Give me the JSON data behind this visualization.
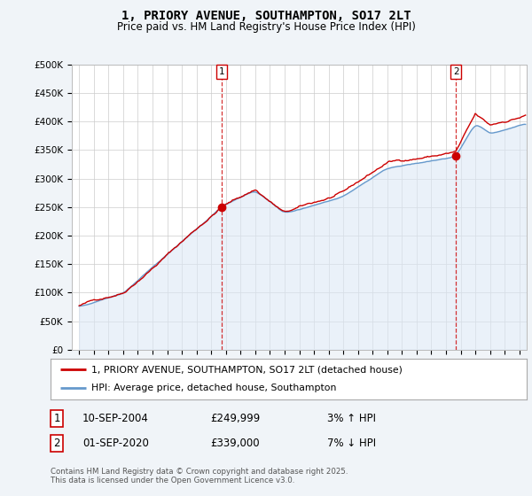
{
  "title": "1, PRIORY AVENUE, SOUTHAMPTON, SO17 2LT",
  "subtitle": "Price paid vs. HM Land Registry's House Price Index (HPI)",
  "ylabel_ticks": [
    "£0",
    "£50K",
    "£100K",
    "£150K",
    "£200K",
    "£250K",
    "£300K",
    "£350K",
    "£400K",
    "£450K",
    "£500K"
  ],
  "ylim": [
    0,
    500000
  ],
  "xlim_start": 1994.5,
  "xlim_end": 2025.5,
  "sale1_date": "10-SEP-2004",
  "sale1_price": "£249,999",
  "sale1_hpi": "3% ↑ HPI",
  "sale1_x": 2004.71,
  "sale2_date": "01-SEP-2020",
  "sale2_price": "£339,000",
  "sale2_hpi": "7% ↓ HPI",
  "sale2_x": 2020.67,
  "line_color_red": "#cc0000",
  "line_color_blue": "#6699cc",
  "fill_color_blue": "#dce8f5",
  "vline_color": "#cc0000",
  "background_color": "#f0f4f8",
  "plot_bg": "#ffffff",
  "legend_label_red": "1, PRIORY AVENUE, SOUTHAMPTON, SO17 2LT (detached house)",
  "legend_label_blue": "HPI: Average price, detached house, Southampton",
  "footer": "Contains HM Land Registry data © Crown copyright and database right 2025.\nThis data is licensed under the Open Government Licence v3.0.",
  "marker1_x": 2004.71,
  "marker1_y": 249999,
  "marker2_x": 2020.67,
  "marker2_y": 339000
}
